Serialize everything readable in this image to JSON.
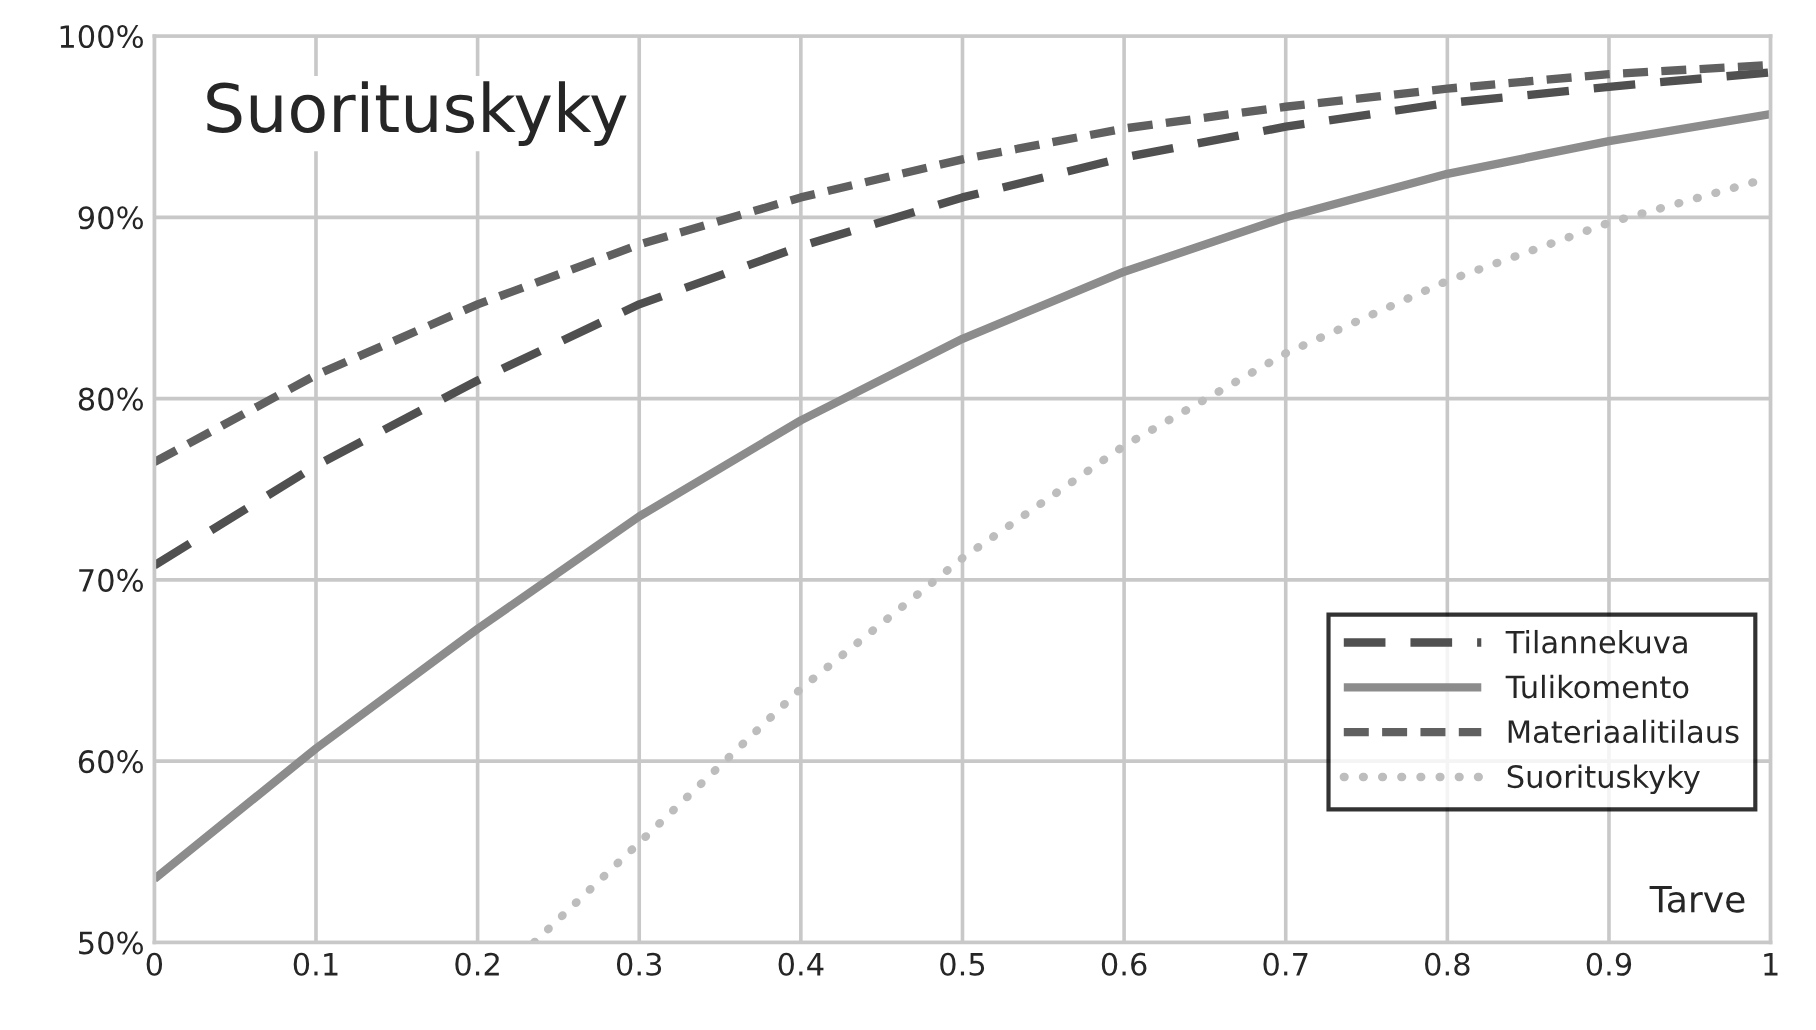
{
  "chart_data": {
    "type": "line",
    "title": "Suorituskyky",
    "xlabel": "Tarve",
    "x": [
      0,
      0.1,
      0.2,
      0.3,
      0.4,
      0.5,
      0.6,
      0.7,
      0.8,
      0.9,
      1
    ],
    "series": [
      {
        "name": "Tilannekuva",
        "color": "#505050",
        "line_style": "dashed",
        "values": [
          70.8,
          76.3,
          81.0,
          85.2,
          88.4,
          91.1,
          93.3,
          95.0,
          96.3,
          97.2,
          98.0
        ]
      },
      {
        "name": "Tulikomento",
        "color": "#8c8c8c",
        "line_style": "solid",
        "values": [
          53.5,
          60.7,
          67.3,
          73.5,
          78.8,
          83.3,
          87.0,
          90.0,
          92.4,
          94.2,
          95.7
        ]
      },
      {
        "name": "Materiaalitilaus",
        "color": "#606060",
        "line_style": "dashed",
        "values": [
          76.5,
          81.3,
          85.2,
          88.5,
          91.1,
          93.2,
          94.9,
          96.1,
          97.1,
          97.9,
          98.4
        ]
      },
      {
        "name": "Suorituskyky",
        "color": "#bdbdbd",
        "line_style": "dotted",
        "x": [
          0.235,
          0.3,
          0.4,
          0.5,
          0.6,
          0.7,
          0.8,
          0.9,
          1
        ],
        "values": [
          50.0,
          55.5,
          64.0,
          71.2,
          77.4,
          82.5,
          86.5,
          89.7,
          92.2
        ]
      }
    ],
    "xlim": [
      0,
      1
    ],
    "xticks": [
      0,
      0.1,
      0.2,
      0.3,
      0.4,
      0.5,
      0.6,
      0.7,
      0.8,
      0.9,
      1
    ],
    "ylim": [
      50,
      100
    ],
    "yticks": [
      {
        "value": 50,
        "label": "50%"
      },
      {
        "value": 60,
        "label": "60%"
      },
      {
        "value": 70,
        "label": "70%"
      },
      {
        "value": 80,
        "label": "80%"
      },
      {
        "value": 90,
        "label": "90%"
      },
      {
        "value": 100,
        "label": "100%"
      }
    ],
    "grid": true,
    "legend": "bottom right"
  }
}
